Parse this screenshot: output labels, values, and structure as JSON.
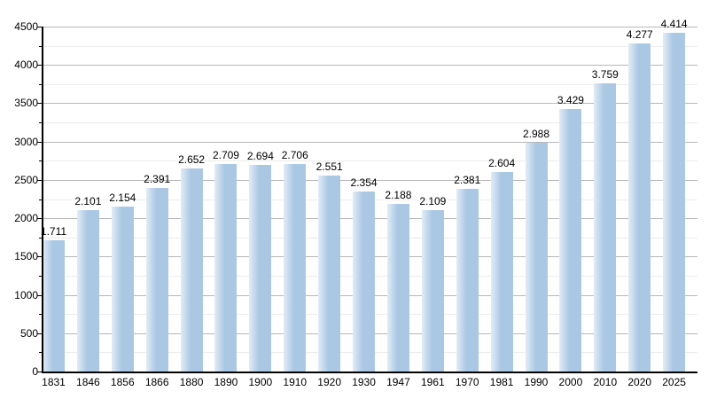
{
  "chart_data": {
    "type": "bar",
    "title": "",
    "xlabel": "",
    "ylabel": "",
    "categories": [
      "1831",
      "1846",
      "1856",
      "1866",
      "1880",
      "1890",
      "1900",
      "1910",
      "1920",
      "1930",
      "1947",
      "1961",
      "1970",
      "1981",
      "1990",
      "2000",
      "2010",
      "2020",
      "2025"
    ],
    "values": [
      1711,
      2101,
      2154,
      2391,
      2652,
      2709,
      2694,
      2706,
      2551,
      2354,
      2188,
      2109,
      2381,
      2604,
      2988,
      3429,
      3759,
      4277,
      4414
    ],
    "value_labels": [
      "1.711",
      "2.101",
      "2.154",
      "2.391",
      "2.652",
      "2.709",
      "2.694",
      "2.706",
      "2.551",
      "2.354",
      "2.188",
      "2.109",
      "2.381",
      "2.604",
      "2.988",
      "3.429",
      "3.759",
      "4.277",
      "4.414"
    ],
    "ylim": [
      0,
      4500
    ],
    "y_major_step": 500,
    "y_minor_step": 250,
    "y_tick_labels": [
      "0",
      "500",
      "1000",
      "1500",
      "2000",
      "2500",
      "3000",
      "3500",
      "4000",
      "4500"
    ],
    "grid": "on",
    "legend": "none",
    "colors": {
      "bar_main": "#aac8e4",
      "bar_highlight": "#e2ecf6",
      "grid_major": "#b8b8b8",
      "grid_minor": "#ececec",
      "axis": "#000000",
      "text": "#000000",
      "background": "#ffffff"
    }
  }
}
